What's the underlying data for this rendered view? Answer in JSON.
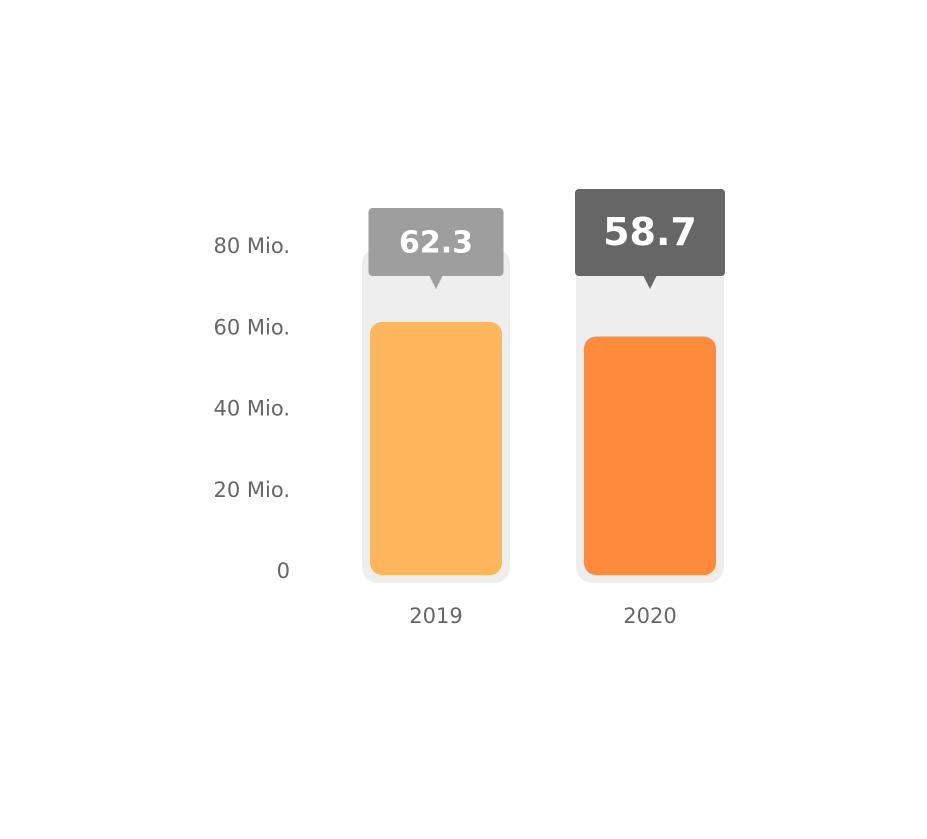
{
  "chart_data": {
    "type": "bar",
    "categories": [
      "2019",
      "2020"
    ],
    "values": [
      62.3,
      58.7
    ],
    "colors": [
      "#fdb65b",
      "#fe8a3c"
    ],
    "label_colors": [
      "#9e9e9e",
      "#666666"
    ],
    "ylim": [
      0,
      80
    ],
    "yticks": [
      0,
      {
        "value": 20,
        "label": "20 Mio."
      },
      {
        "value": 40,
        "label": "40 Mio."
      },
      {
        "value": 60,
        "label": "60 Mio."
      },
      {
        "value": 80,
        "label": "80 Mio."
      }
    ]
  }
}
